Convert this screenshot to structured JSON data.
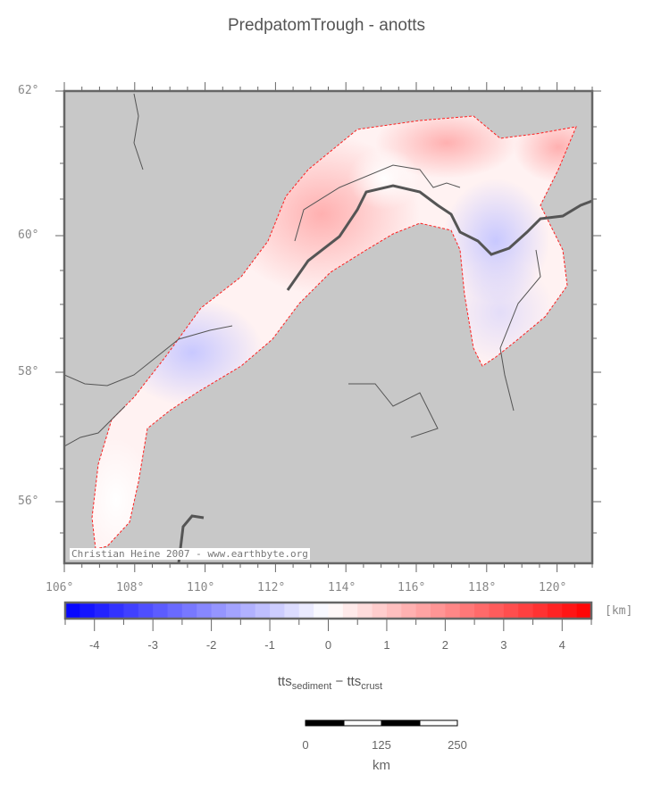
{
  "title": "PredpatomTrough - anotts",
  "map": {
    "lon_labels": [
      "106°",
      "108°",
      "110°",
      "112°",
      "114°",
      "116°",
      "118°",
      "120°"
    ],
    "lat_labels": [
      "62°",
      "60°",
      "58°",
      "56°"
    ],
    "lon_range": [
      106,
      121
    ],
    "lat_range": [
      55.1,
      62
    ],
    "credit": "Christian Heine 2007 - www.earthbyte.org",
    "land_color": "#c8c8c8",
    "outline_color": "#ff0000"
  },
  "colorbar": {
    "unit": "[km]",
    "range": [
      -4.5,
      4.5
    ],
    "step": 0.25,
    "tick_labels": [
      "-4",
      "-3",
      "-2",
      "-1",
      "0",
      "1",
      "2",
      "3",
      "4"
    ],
    "colors": {
      "min": "#0000ff",
      "mid": "#ffffff",
      "max": "#ff0000"
    },
    "label_main": "tts",
    "label_sub1": "sediment",
    "label_sep": " − tts",
    "label_sub2": "crust"
  },
  "scalebar": {
    "labels": [
      "0",
      "125",
      "250"
    ],
    "unit": "km"
  }
}
